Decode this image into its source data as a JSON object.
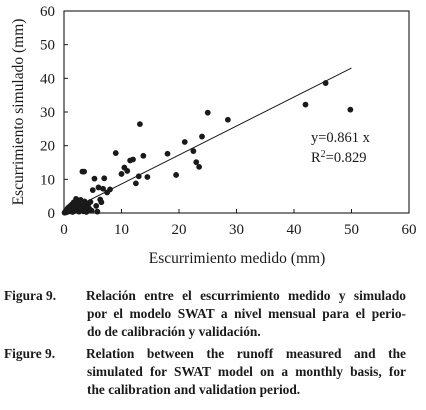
{
  "chart_data": {
    "type": "scatter",
    "title": "",
    "xlabel": "Escurrimiento medido (mm)",
    "ylabel": "Escurrimiento simulado (mm)",
    "xlim": [
      0,
      60
    ],
    "ylim": [
      0,
      60
    ],
    "xticks": [
      "0",
      "10",
      "20",
      "30",
      "40",
      "50",
      "60"
    ],
    "yticks": [
      "0",
      "10",
      "20",
      "30",
      "40",
      "50",
      "60"
    ],
    "grid": false,
    "legend": "none",
    "annotation_equation": "y=0.861 x",
    "annotation_r2_prefix": "R",
    "annotation_r2_sup": "2",
    "annotation_r2_value": "=0.829",
    "trendline": {
      "slope": 0.861,
      "x_start": 0,
      "x_end": 50
    },
    "marker_color": "#1a1a1a",
    "series": [
      {
        "points": [
          [
            0.1,
            0.1
          ],
          [
            0.2,
            0.3
          ],
          [
            0.3,
            0.6
          ],
          [
            0.4,
            0.2
          ],
          [
            0.5,
            0.9
          ],
          [
            0.6,
            1.3
          ],
          [
            0.7,
            0.4
          ],
          [
            0.8,
            1.7
          ],
          [
            0.9,
            0.8
          ],
          [
            1.0,
            1.1
          ],
          [
            1.1,
            2.1
          ],
          [
            1.2,
            0.5
          ],
          [
            1.3,
            1.5
          ],
          [
            1.4,
            2.6
          ],
          [
            1.5,
            0.3
          ],
          [
            1.6,
            1.9
          ],
          [
            1.7,
            3.2
          ],
          [
            1.8,
            1.0
          ],
          [
            1.9,
            0.6
          ],
          [
            2.0,
            2.3
          ],
          [
            2.1,
            4.2
          ],
          [
            2.2,
            1.4
          ],
          [
            2.3,
            0.9
          ],
          [
            2.4,
            3.0
          ],
          [
            2.5,
            1.8
          ],
          [
            2.6,
            0.4
          ],
          [
            2.7,
            2.6
          ],
          [
            2.8,
            1.2
          ],
          [
            2.9,
            3.9
          ],
          [
            3.0,
            0.8
          ],
          [
            3.1,
            2.2
          ],
          [
            3.2,
            12.3
          ],
          [
            3.3,
            1.6
          ],
          [
            3.4,
            0.5
          ],
          [
            3.5,
            12.3
          ],
          [
            3.6,
            3.4
          ],
          [
            3.7,
            1.0
          ],
          [
            3.8,
            2.8
          ],
          [
            3.9,
            0.3
          ],
          [
            4.0,
            1.9
          ],
          [
            4.2,
            2.5
          ],
          [
            4.4,
            1.3
          ],
          [
            4.6,
            3.3
          ],
          [
            4.8,
            0.7
          ],
          [
            5.0,
            6.8
          ],
          [
            5.3,
            10.2
          ],
          [
            5.6,
            2.1
          ],
          [
            5.8,
            0.4
          ],
          [
            6.0,
            7.6
          ],
          [
            6.3,
            4.0
          ],
          [
            6.5,
            3.2
          ],
          [
            6.8,
            7.2
          ],
          [
            7.0,
            10.3
          ],
          [
            7.5,
            6.1
          ],
          [
            8.0,
            7.0
          ],
          [
            9.0,
            17.8
          ],
          [
            10.0,
            11.6
          ],
          [
            10.5,
            13.5
          ],
          [
            11.0,
            12.5
          ],
          [
            11.5,
            15.6
          ],
          [
            12.0,
            15.9
          ],
          [
            12.5,
            8.8
          ],
          [
            13.0,
            10.9
          ],
          [
            13.2,
            26.4
          ],
          [
            13.8,
            17.0
          ],
          [
            14.5,
            10.7
          ],
          [
            18.0,
            17.6
          ],
          [
            19.5,
            11.3
          ],
          [
            21.0,
            21.1
          ],
          [
            22.5,
            18.4
          ],
          [
            23.0,
            15.1
          ],
          [
            23.5,
            13.7
          ],
          [
            24.0,
            22.7
          ],
          [
            25.0,
            29.8
          ],
          [
            28.5,
            27.7
          ],
          [
            42.0,
            32.2
          ],
          [
            45.5,
            38.6
          ],
          [
            49.8,
            30.7
          ]
        ]
      }
    ]
  },
  "captions": [
    {
      "label": "Figura 9.",
      "lines": [
        "Relación entre el escurrimiento medido y simulado",
        "por el modelo SWAT a nivel mensual para el perio-",
        "do de calibración y validación."
      ]
    },
    {
      "label": "Figure 9.",
      "lines": [
        "Relation between the runoff measured and the",
        "simulated for SWAT model on a monthly basis, for",
        "the calibration and validation period."
      ]
    }
  ]
}
